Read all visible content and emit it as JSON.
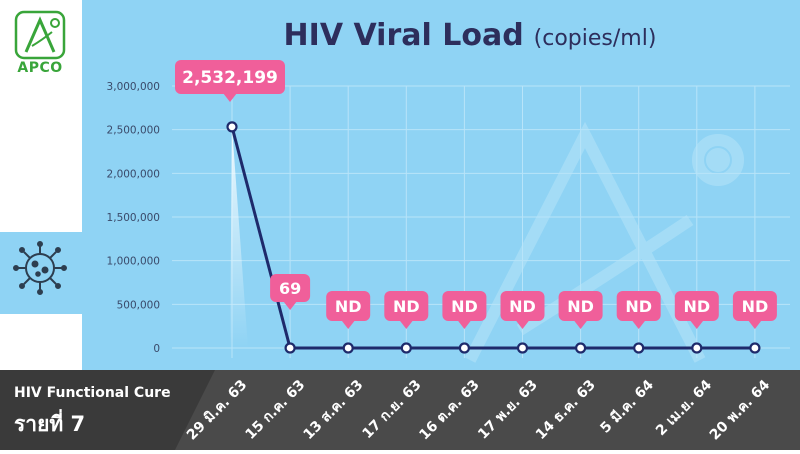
{
  "brand": {
    "name": "APCO",
    "logo_icon": "apco-logo-icon",
    "accent": "#39a53a"
  },
  "title": {
    "main": "HIV Viral Load",
    "unit": "(copies/ml)"
  },
  "footer": {
    "line1": "HIV Functional Cure",
    "line2": "รายที่ 7"
  },
  "side_icon": "virus-icon",
  "colors": {
    "plot_bg": "#8fd3f4",
    "line": "#1e2a6b",
    "callout": "#f05f9a",
    "title": "#2d2e5c",
    "footer_bg": "#4a4a4a",
    "footer_band": "#3a3a3a"
  },
  "chart_data": {
    "type": "line",
    "title": "HIV Viral Load",
    "ylabel": "(copies/ml)",
    "ylim": [
      0,
      3000000
    ],
    "y_ticks": [
      "3,000,000",
      "2,500,000",
      "2,000,000",
      "1,500,000",
      "1,000,000",
      "500,000",
      "0"
    ],
    "y_tick_values": [
      3000000,
      2500000,
      2000000,
      1500000,
      1000000,
      500000,
      0
    ],
    "categories": [
      "29 มิ.ค. 63",
      "15 ก.ค. 63",
      "13 ส.ค. 63",
      "17 ก.ย. 63",
      "16 ต.ค. 63",
      "17 พ.ย. 63",
      "14 ธ.ค. 63",
      "5 มี.ค. 64",
      "2 เม.ย. 64",
      "20 พ.ค. 64"
    ],
    "values": [
      2532199,
      69,
      0,
      0,
      0,
      0,
      0,
      0,
      0,
      0
    ],
    "data_labels": [
      "2,532,199",
      "69",
      "ND",
      "ND",
      "ND",
      "ND",
      "ND",
      "ND",
      "ND",
      "ND"
    ],
    "grid": true
  }
}
